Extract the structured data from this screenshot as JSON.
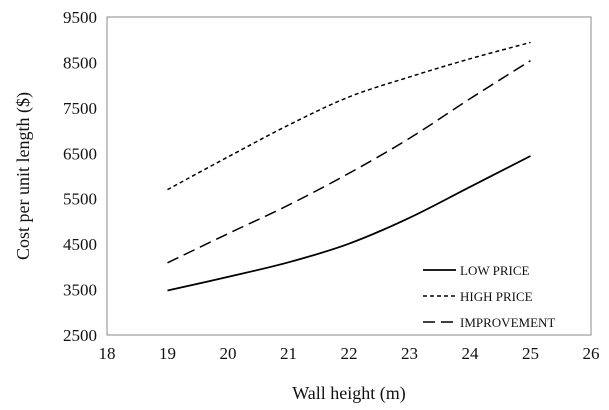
{
  "chart_data": {
    "type": "line",
    "xlabel": "Wall height (m)",
    "ylabel": "Cost per unit length ($)",
    "xlim": [
      18,
      26
    ],
    "ylim": [
      2500,
      9500
    ],
    "xticks": [
      18,
      19,
      20,
      21,
      22,
      23,
      24,
      25,
      26
    ],
    "yticks": [
      2500,
      3500,
      4500,
      5500,
      6500,
      7500,
      8500,
      9500
    ],
    "grid": false,
    "legend_position": "bottom-right",
    "series": [
      {
        "name": "LOW PRICE",
        "line_style": "solid",
        "color": "#000000",
        "x": [
          19,
          20,
          21,
          22,
          23,
          24,
          25
        ],
        "y": [
          3480,
          3780,
          4100,
          4510,
          5080,
          5760,
          6440
        ]
      },
      {
        "name": "HIGH PRICE",
        "line_style": "short-dashed",
        "color": "#000000",
        "x": [
          19,
          20,
          21,
          22,
          23,
          24,
          25
        ],
        "y": [
          5700,
          6420,
          7120,
          7740,
          8180,
          8580,
          8940
        ]
      },
      {
        "name": "IMPROVEMENT",
        "line_style": "long-dashed",
        "color": "#000000",
        "x": [
          19,
          20,
          21,
          22,
          23,
          24,
          25
        ],
        "y": [
          4090,
          4730,
          5360,
          6060,
          6830,
          7700,
          8540
        ]
      }
    ]
  }
}
